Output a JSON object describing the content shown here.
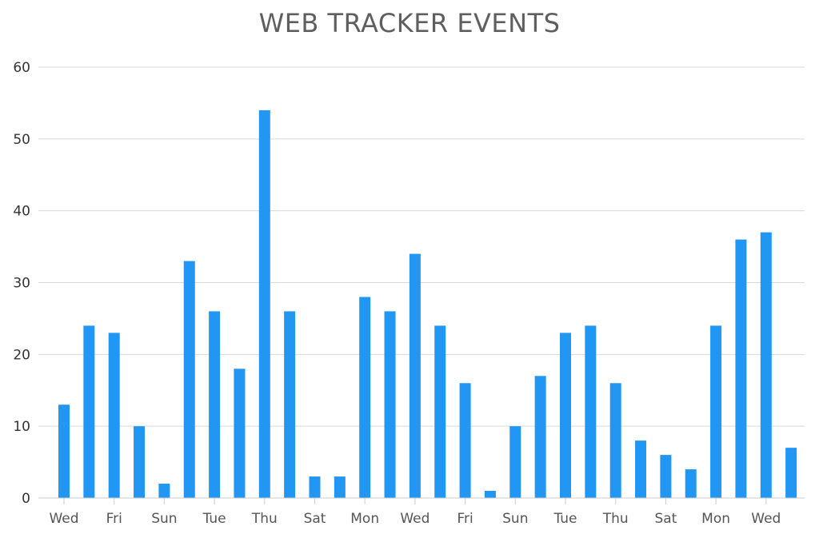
{
  "chart_data": {
    "type": "bar",
    "title": "WEB TRACKER EVENTS",
    "xlabel": "",
    "ylabel": "",
    "ylim": [
      0,
      60
    ],
    "yticks": [
      0,
      10,
      20,
      30,
      40,
      50,
      60
    ],
    "grid": true,
    "legend": "none",
    "bar_color": "#2196f3",
    "values": [
      13,
      24,
      23,
      10,
      2,
      33,
      26,
      18,
      54,
      26,
      3,
      3,
      28,
      26,
      34,
      24,
      16,
      1,
      10,
      17,
      23,
      24,
      16,
      8,
      6,
      4,
      24,
      36,
      37,
      7
    ],
    "x_tick_labels": [
      {
        "index": 0,
        "label": "Wed"
      },
      {
        "index": 2,
        "label": "Fri"
      },
      {
        "index": 4,
        "label": "Sun"
      },
      {
        "index": 6,
        "label": "Tue"
      },
      {
        "index": 8,
        "label": "Thu"
      },
      {
        "index": 10,
        "label": "Sat"
      },
      {
        "index": 12,
        "label": "Mon"
      },
      {
        "index": 14,
        "label": "Wed"
      },
      {
        "index": 16,
        "label": "Fri"
      },
      {
        "index": 18,
        "label": "Sun"
      },
      {
        "index": 20,
        "label": "Tue"
      },
      {
        "index": 22,
        "label": "Thu"
      },
      {
        "index": 24,
        "label": "Sat"
      },
      {
        "index": 26,
        "label": "Mon"
      },
      {
        "index": 28,
        "label": "Wed"
      }
    ]
  }
}
